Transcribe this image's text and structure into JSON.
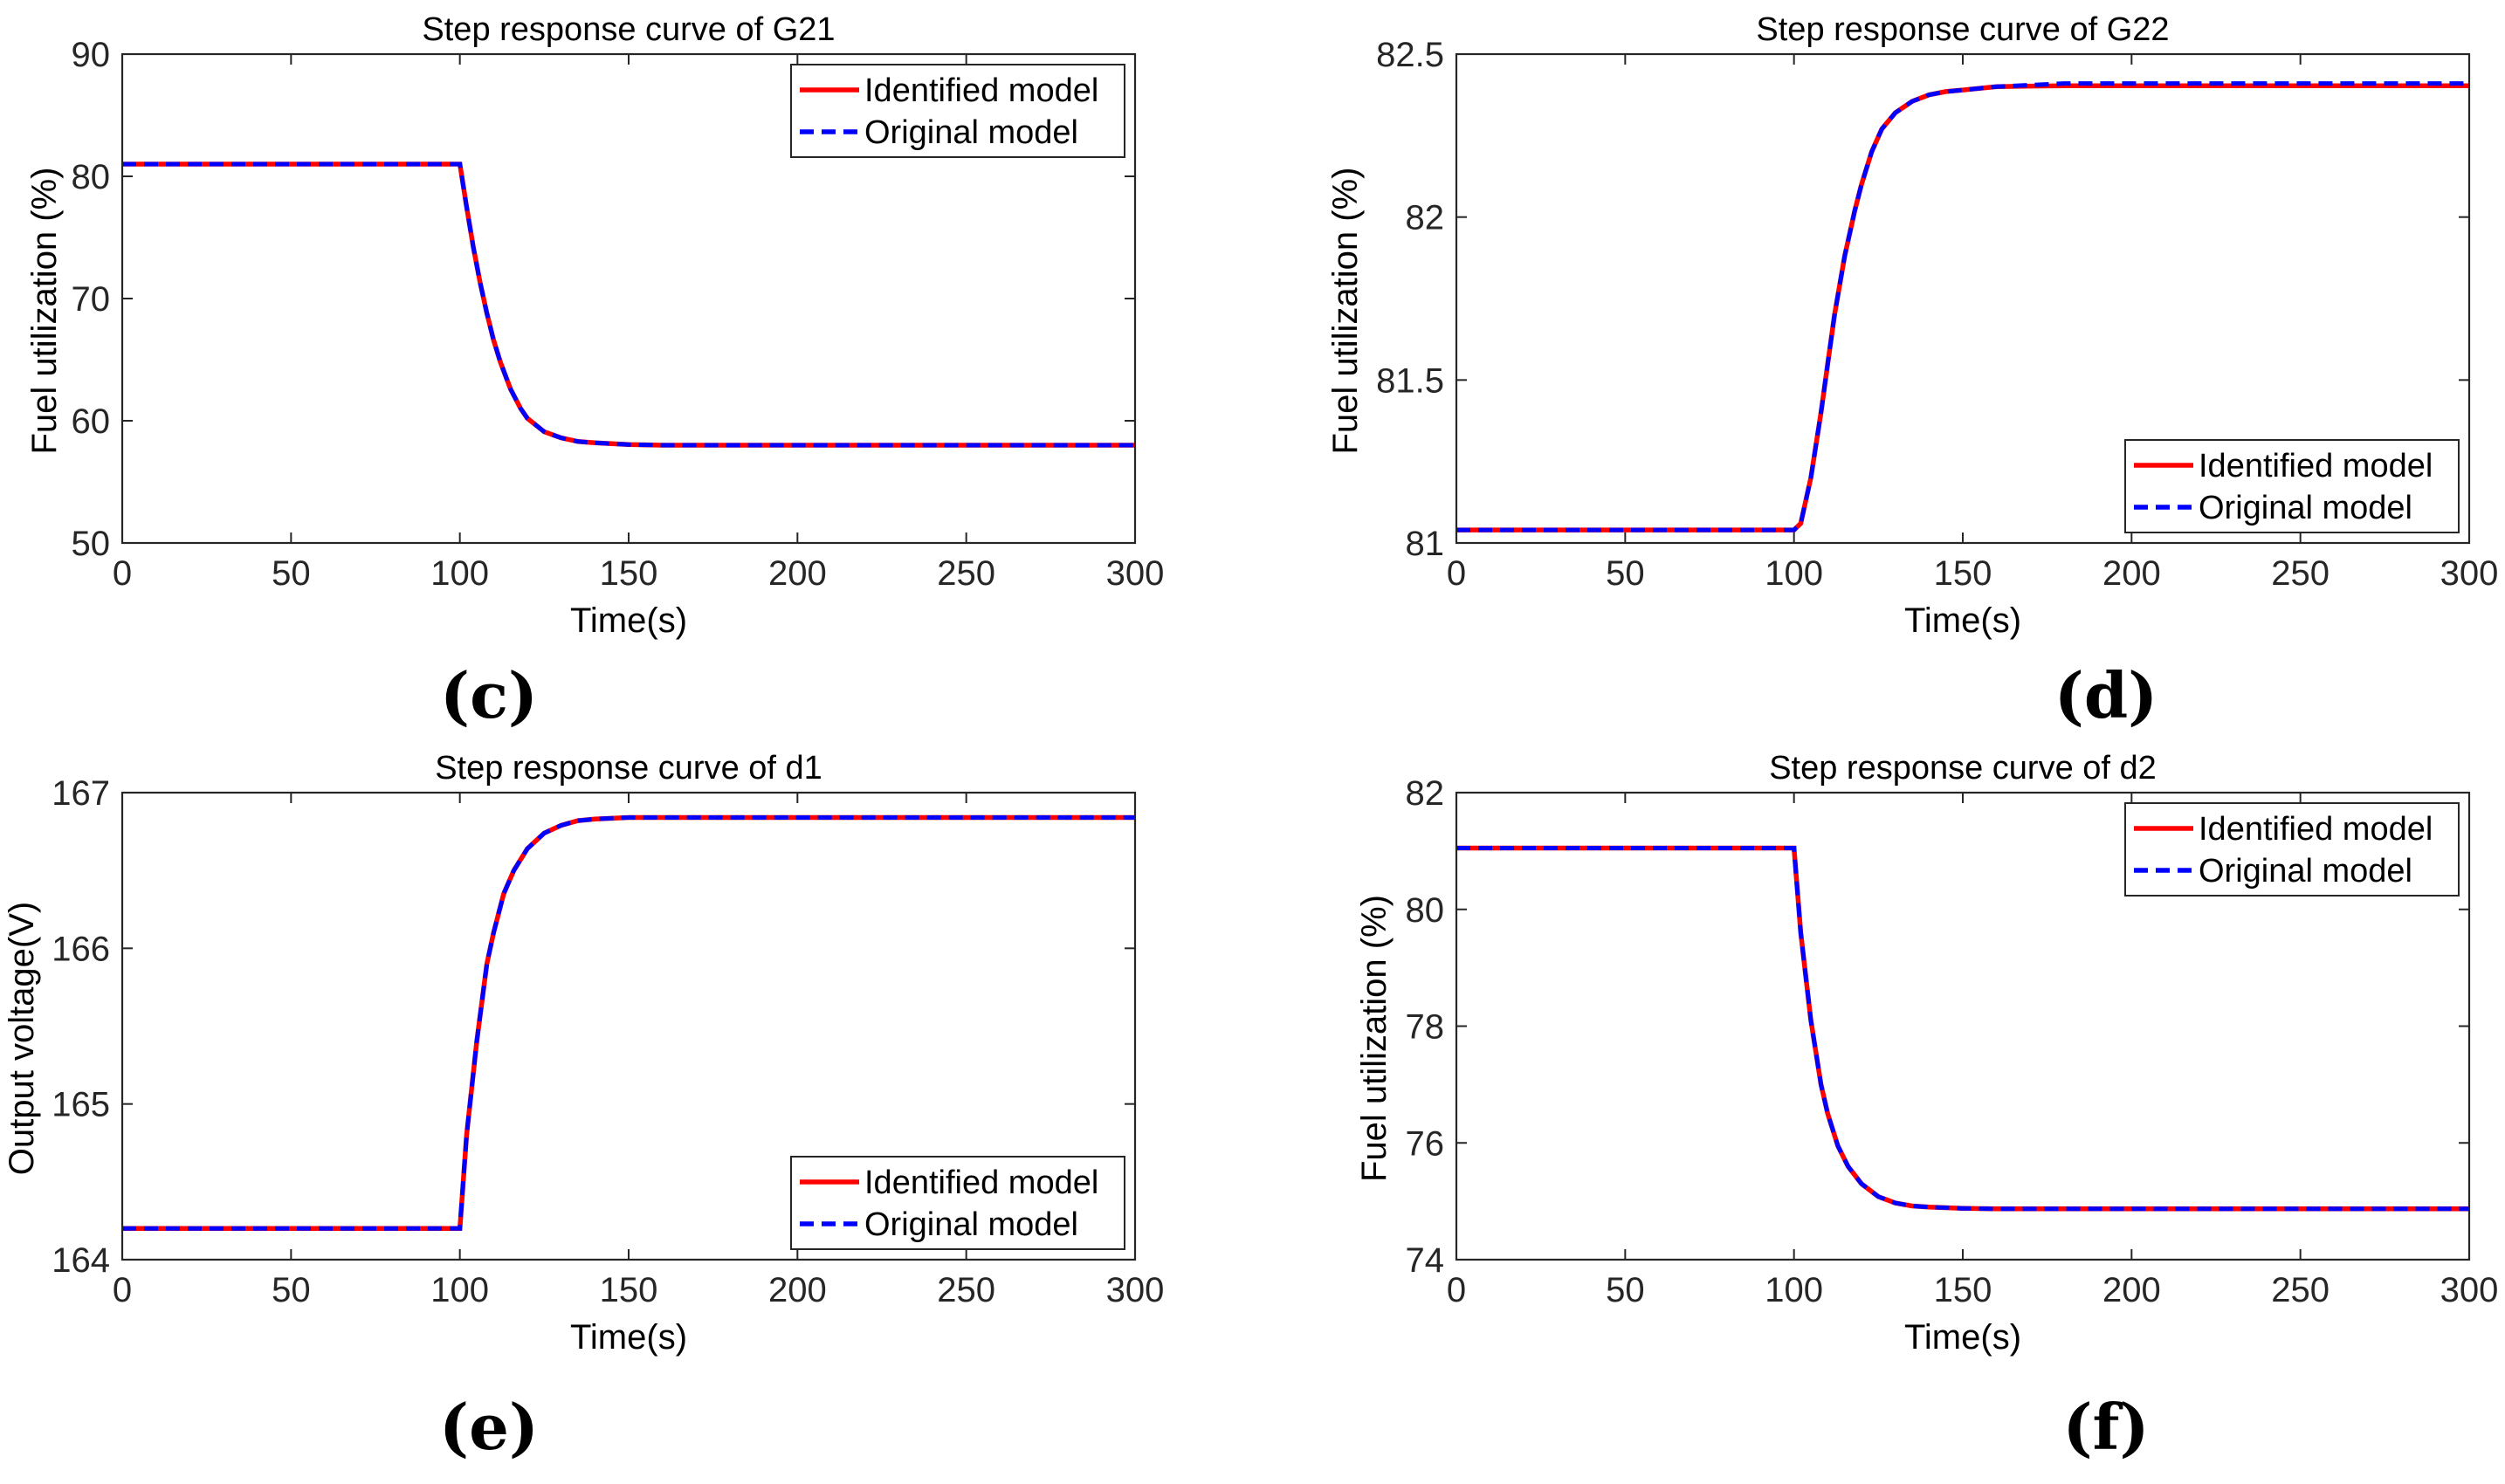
{
  "chart_data": [
    {
      "type": "line",
      "panel_label": "(c)",
      "title": "Step response curve of G21",
      "xlabel": "Time(s)",
      "ylabel": "Fuel utilization (%)",
      "xlim": [
        0,
        300
      ],
      "ylim": [
        50,
        90
      ],
      "xticks": [
        0,
        50,
        100,
        150,
        200,
        250,
        300
      ],
      "yticks": [
        50,
        60,
        70,
        80,
        90
      ],
      "xtick_labels": [
        "0",
        "50",
        "100",
        "150",
        "200",
        "250",
        "300"
      ],
      "ytick_labels": [
        "50",
        "60",
        "70",
        "80",
        "90"
      ],
      "legend_position": "top-right",
      "series": [
        {
          "name": "Identified model",
          "color": "#ff0000",
          "style": "solid",
          "x": [
            0,
            100,
            102,
            104,
            106,
            108,
            110,
            112,
            115,
            118,
            120,
            125,
            130,
            135,
            140,
            150,
            160,
            180,
            200,
            250,
            300
          ],
          "y": [
            81,
            81,
            77.5,
            74.2,
            71.3,
            68.8,
            66.6,
            64.8,
            62.6,
            61.0,
            60.2,
            59.1,
            58.6,
            58.3,
            58.2,
            58.05,
            58.0,
            58.0,
            58.0,
            58.0,
            58.0
          ]
        },
        {
          "name": "Original model",
          "color": "#0000ff",
          "style": "dashed",
          "x": [
            0,
            100,
            102,
            104,
            106,
            108,
            110,
            112,
            115,
            118,
            120,
            125,
            130,
            135,
            140,
            150,
            160,
            180,
            200,
            250,
            300
          ],
          "y": [
            81,
            81,
            77.5,
            74.2,
            71.3,
            68.8,
            66.6,
            64.8,
            62.6,
            61.0,
            60.2,
            59.1,
            58.6,
            58.3,
            58.2,
            58.05,
            58.0,
            58.0,
            58.0,
            58.0,
            58.0
          ]
        }
      ]
    },
    {
      "type": "line",
      "panel_label": "(d)",
      "title": "Step response curve of G22",
      "xlabel": "Time(s)",
      "ylabel": "Fuel utilization (%)",
      "xlim": [
        0,
        300
      ],
      "ylim": [
        81,
        82.5
      ],
      "xticks": [
        0,
        50,
        100,
        150,
        200,
        250,
        300
      ],
      "yticks": [
        81,
        81.5,
        82,
        82.5
      ],
      "xtick_labels": [
        "0",
        "50",
        "100",
        "150",
        "200",
        "250",
        "300"
      ],
      "ytick_labels": [
        "81",
        "81.5",
        "82",
        "82.5"
      ],
      "legend_position": "bottom-right",
      "series": [
        {
          "name": "Identified model",
          "color": "#ff0000",
          "style": "solid",
          "x": [
            0,
            100,
            102,
            105,
            108,
            110,
            112,
            115,
            118,
            120,
            123,
            126,
            130,
            135,
            140,
            145,
            150,
            160,
            170,
            180,
            200,
            250,
            300
          ],
          "y": [
            81.04,
            81.04,
            81.06,
            81.2,
            81.4,
            81.55,
            81.7,
            81.88,
            82.02,
            82.1,
            82.2,
            82.27,
            82.32,
            82.355,
            82.375,
            82.385,
            82.39,
            82.4,
            82.402,
            82.403,
            82.403,
            82.403,
            82.403
          ]
        },
        {
          "name": "Original model",
          "color": "#0000ff",
          "style": "dashed",
          "x": [
            0,
            100,
            102,
            105,
            108,
            110,
            112,
            115,
            118,
            120,
            123,
            126,
            130,
            135,
            140,
            145,
            150,
            160,
            170,
            180,
            200,
            250,
            300
          ],
          "y": [
            81.04,
            81.04,
            81.06,
            81.2,
            81.4,
            81.55,
            81.7,
            81.88,
            82.02,
            82.1,
            82.2,
            82.27,
            82.32,
            82.355,
            82.375,
            82.385,
            82.39,
            82.4,
            82.405,
            82.41,
            82.41,
            82.41,
            82.41
          ]
        }
      ]
    },
    {
      "type": "line",
      "panel_label": "(e)",
      "title": "Step response curve of d1",
      "xlabel": "Time(s)",
      "ylabel": "Output voltage(V)",
      "xlim": [
        0,
        300
      ],
      "ylim": [
        164,
        167
      ],
      "xticks": [
        0,
        50,
        100,
        150,
        200,
        250,
        300
      ],
      "yticks": [
        164,
        165,
        166,
        167
      ],
      "xtick_labels": [
        "0",
        "50",
        "100",
        "150",
        "200",
        "250",
        "300"
      ],
      "ytick_labels": [
        "164",
        "165",
        "166",
        "167"
      ],
      "legend_position": "bottom-right",
      "series": [
        {
          "name": "Identified model",
          "color": "#ff0000",
          "style": "solid",
          "x": [
            0,
            100,
            102,
            105,
            108,
            110,
            113,
            116,
            120,
            125,
            130,
            135,
            140,
            150,
            160,
            180,
            200,
            250,
            300
          ],
          "y": [
            164.2,
            164.2,
            164.8,
            165.4,
            165.9,
            166.1,
            166.35,
            166.5,
            166.64,
            166.74,
            166.79,
            166.82,
            166.83,
            166.84,
            166.84,
            166.84,
            166.84,
            166.84,
            166.84
          ]
        },
        {
          "name": "Original model",
          "color": "#0000ff",
          "style": "dashed",
          "x": [
            0,
            100,
            102,
            105,
            108,
            110,
            113,
            116,
            120,
            125,
            130,
            135,
            140,
            150,
            160,
            180,
            200,
            250,
            300
          ],
          "y": [
            164.2,
            164.2,
            164.8,
            165.4,
            165.9,
            166.1,
            166.35,
            166.5,
            166.64,
            166.74,
            166.79,
            166.82,
            166.83,
            166.84,
            166.84,
            166.84,
            166.84,
            166.84,
            166.84
          ]
        }
      ]
    },
    {
      "type": "line",
      "panel_label": "(f)",
      "title": "Step response curve of d2",
      "xlabel": "Time(s)",
      "ylabel": "Fuel utilization (%)",
      "xlim": [
        0,
        300
      ],
      "ylim": [
        74,
        82
      ],
      "xticks": [
        0,
        50,
        100,
        150,
        200,
        250,
        300
      ],
      "yticks": [
        74,
        76,
        78,
        80,
        82
      ],
      "xtick_labels": [
        "0",
        "50",
        "100",
        "150",
        "200",
        "250",
        "300"
      ],
      "ytick_labels": [
        "74",
        "76",
        "78",
        "80",
        "82"
      ],
      "legend_position": "top-right",
      "series": [
        {
          "name": "Identified model",
          "color": "#ff0000",
          "style": "solid",
          "x": [
            0,
            100,
            102,
            105,
            108,
            110,
            113,
            116,
            120,
            125,
            130,
            135,
            140,
            150,
            160,
            180,
            200,
            250,
            300
          ],
          "y": [
            81.05,
            81.05,
            79.6,
            78.1,
            77.0,
            76.5,
            75.95,
            75.6,
            75.3,
            75.08,
            74.97,
            74.92,
            74.9,
            74.88,
            74.87,
            74.87,
            74.87,
            74.87,
            74.87
          ]
        },
        {
          "name": "Original model",
          "color": "#0000ff",
          "style": "dashed",
          "x": [
            0,
            100,
            102,
            105,
            108,
            110,
            113,
            116,
            120,
            125,
            130,
            135,
            140,
            150,
            160,
            180,
            200,
            250,
            300
          ],
          "y": [
            81.05,
            81.05,
            79.6,
            78.1,
            77.0,
            76.5,
            75.95,
            75.6,
            75.3,
            75.08,
            74.97,
            74.92,
            74.9,
            74.88,
            74.87,
            74.87,
            74.87,
            74.87,
            74.87
          ]
        }
      ]
    }
  ]
}
